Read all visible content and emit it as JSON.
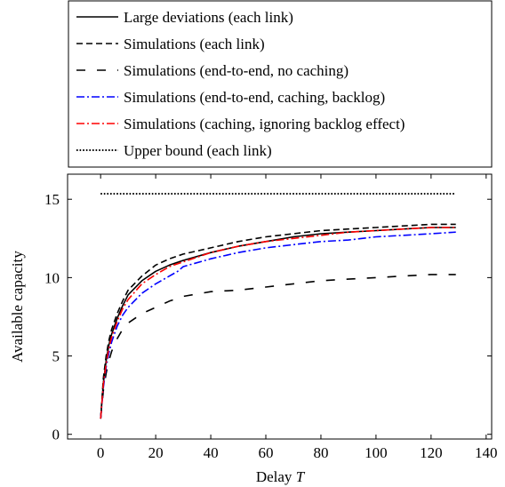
{
  "chart_data": {
    "type": "line",
    "title": "",
    "xlabel": "Delay T",
    "ylabel": "Available capacity",
    "xlim": [
      -12,
      142
    ],
    "ylim": [
      -0.3,
      16.6
    ],
    "x_ticks": [
      0,
      20,
      40,
      60,
      80,
      100,
      120,
      140
    ],
    "y_ticks": [
      0,
      5,
      10,
      15
    ],
    "legend_position": "top, above plot",
    "grid": false,
    "series": [
      {
        "name": "Large deviations (each link)",
        "color": "#000000",
        "dash": "solid",
        "x": [
          0,
          1,
          2,
          3,
          4,
          6,
          8,
          10,
          15,
          20,
          25,
          30,
          40,
          50,
          60,
          70,
          80,
          90,
          100,
          110,
          120,
          129
        ],
        "y": [
          1.0,
          3.3,
          4.7,
          5.7,
          6.4,
          7.4,
          8.2,
          8.9,
          9.8,
          10.4,
          10.8,
          11.1,
          11.6,
          12.0,
          12.3,
          12.6,
          12.8,
          12.9,
          13.0,
          13.1,
          13.2,
          13.2
        ]
      },
      {
        "name": "Simulations (each link)",
        "color": "#000000",
        "dash": "dashed",
        "x": [
          0,
          1,
          2,
          3,
          4,
          6,
          8,
          10,
          15,
          20,
          25,
          30,
          40,
          50,
          60,
          70,
          80,
          90,
          100,
          110,
          120,
          129
        ],
        "y": [
          1.0,
          3.6,
          5.0,
          6.0,
          6.7,
          7.7,
          8.5,
          9.2,
          10.1,
          10.8,
          11.2,
          11.5,
          11.9,
          12.3,
          12.6,
          12.8,
          13.0,
          13.1,
          13.2,
          13.3,
          13.4,
          13.4
        ]
      },
      {
        "name": "Simulations (end-to-end, no caching)",
        "color": "#000000",
        "dash": "loosely-dashed",
        "x": [
          0,
          1,
          2,
          3,
          4,
          6,
          8,
          10,
          15,
          20,
          25,
          30,
          40,
          50,
          60,
          70,
          80,
          90,
          100,
          110,
          120,
          129
        ],
        "y": [
          1.0,
          2.8,
          3.9,
          4.7,
          5.3,
          6.1,
          6.7,
          7.1,
          7.7,
          8.1,
          8.5,
          8.8,
          9.1,
          9.2,
          9.4,
          9.6,
          9.8,
          9.9,
          10.0,
          10.1,
          10.2,
          10.2
        ]
      },
      {
        "name": "Simulations (end-to-end, caching, backlog)",
        "color": "#0000ff",
        "dash": "dash-dot",
        "x": [
          0,
          1,
          2,
          3,
          4,
          6,
          8,
          10,
          15,
          20,
          25,
          28,
          30,
          40,
          50,
          60,
          70,
          80,
          90,
          100,
          110,
          120,
          129
        ],
        "y": [
          1.0,
          3.0,
          4.3,
          5.2,
          5.9,
          6.9,
          7.6,
          8.1,
          9.0,
          9.6,
          10.1,
          10.4,
          10.7,
          11.2,
          11.6,
          11.9,
          12.1,
          12.3,
          12.4,
          12.6,
          12.7,
          12.8,
          12.9
        ]
      },
      {
        "name": "Simulations (caching, ignoring backlog effect)",
        "color": "#ff0000",
        "dash": "dash-dot",
        "x": [
          0,
          1,
          2,
          3,
          4,
          6,
          8,
          10,
          15,
          20,
          25,
          30,
          40,
          50,
          60,
          70,
          80,
          90,
          100,
          110,
          120,
          129
        ],
        "y": [
          1.0,
          3.2,
          4.5,
          5.5,
          6.2,
          7.2,
          8.0,
          8.6,
          9.6,
          10.2,
          10.7,
          11.0,
          11.6,
          12.0,
          12.3,
          12.5,
          12.7,
          12.9,
          13.0,
          13.1,
          13.2,
          13.2
        ]
      },
      {
        "name": "Upper bound (each link)",
        "color": "#000000",
        "dash": "dotted",
        "x": [
          0,
          129
        ],
        "y": [
          15.35,
          15.35
        ]
      }
    ]
  }
}
